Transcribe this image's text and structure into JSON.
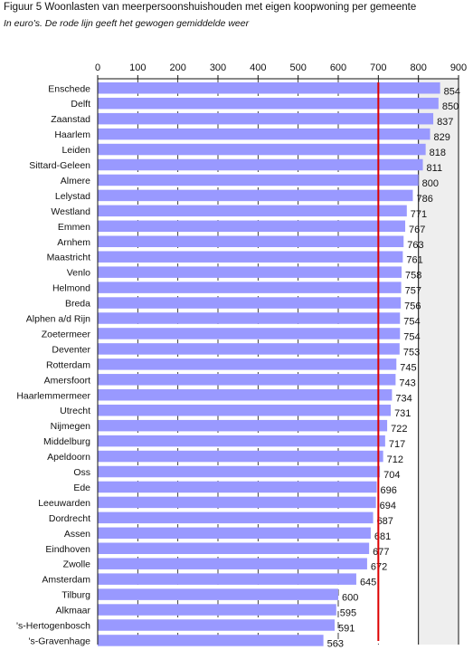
{
  "title": "Figuur 5 Woonlasten van meerpersoonshuishouden met eigen koopwoning per gemeente",
  "subtitle": "In euro's. De rode lijn geeft het gewogen gemiddelde weer",
  "colors": {
    "bar": "#9999ff",
    "reference_line": "#dd0000",
    "background_band": "#eeeeee",
    "grid": "#111111"
  },
  "chart_data": {
    "type": "bar",
    "orientation": "horizontal",
    "title": "Figuur 5 Woonlasten van meerpersoonshuishouden met eigen koopwoning per gemeente",
    "subtitle": "In euro's. De rode lijn geeft het gewogen gemiddelde weer",
    "categories": [
      "Enschede",
      "Delft",
      "Zaanstad",
      "Haarlem",
      "Leiden",
      "Sittard-Geleen",
      "Almere",
      "Lelystad",
      "Westland",
      "Emmen",
      "Arnhem",
      "Maastricht",
      "Venlo",
      "Helmond",
      "Breda",
      "Alphen a/d Rijn",
      "Zoetermeer",
      "Deventer",
      "Rotterdam",
      "Amersfoort",
      "Haarlemmermeer",
      "Utrecht",
      "Nijmegen",
      "Middelburg",
      "Apeldoorn",
      "Oss",
      "Ede",
      "Leeuwarden",
      "Dordrecht",
      "Assen",
      "Eindhoven",
      "Zwolle",
      "Amsterdam",
      "Tilburg",
      "Alkmaar",
      "'s-Hertogenbosch",
      "'s-Gravenhage"
    ],
    "values": [
      854,
      850,
      837,
      829,
      818,
      811,
      800,
      786,
      771,
      767,
      763,
      761,
      758,
      757,
      756,
      754,
      754,
      753,
      745,
      743,
      734,
      731,
      722,
      717,
      712,
      704,
      696,
      694,
      687,
      681,
      677,
      672,
      645,
      600,
      595,
      591,
      563
    ],
    "value_labels": [
      "854",
      "850",
      "837",
      "829",
      "818",
      "811",
      "800",
      "786",
      "771",
      "767",
      "763",
      "761",
      "758",
      "757",
      "756",
      "754",
      "754",
      "753",
      "745",
      "743",
      "734",
      "731",
      "722",
      "717",
      "712",
      "704",
      "696",
      "694",
      "687",
      "681",
      "677",
      "672",
      "645",
      "600",
      "595",
      "591",
      "563"
    ],
    "x_ticks": [
      0,
      100,
      200,
      300,
      400,
      500,
      600,
      700,
      800,
      900
    ],
    "x_tick_labels": [
      "0",
      "100",
      "200",
      "300",
      "400",
      "500",
      "600",
      "700",
      "800",
      "900"
    ],
    "xlim": [
      0,
      900
    ],
    "xaxis_position": "top",
    "reference_line": 700,
    "shaded_band": [
      800,
      900
    ],
    "grid": true,
    "legend": "none"
  }
}
